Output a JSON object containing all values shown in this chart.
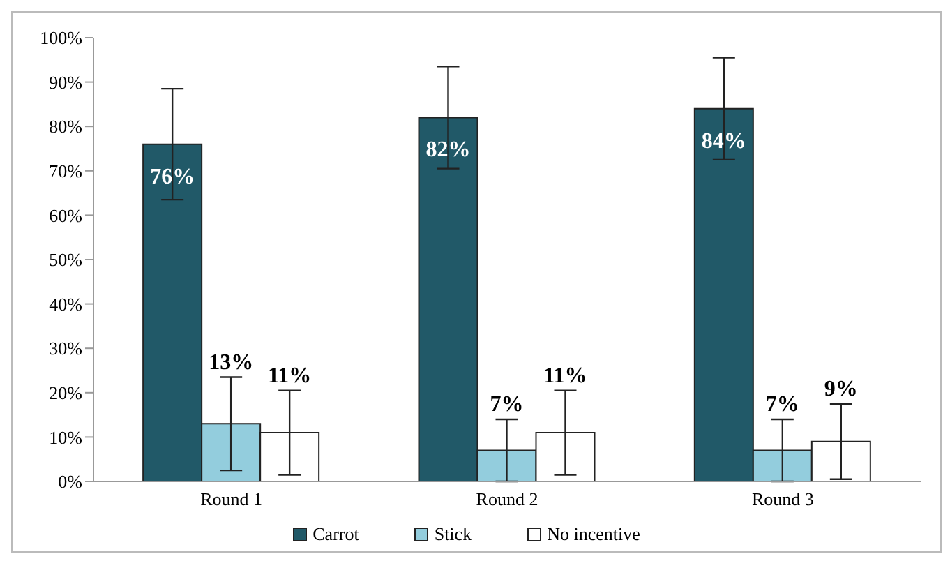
{
  "chart_data": {
    "type": "bar",
    "categories": [
      "Round 1",
      "Round 2",
      "Round 3"
    ],
    "series": [
      {
        "name": "Carrot",
        "color": "#215968",
        "values": [
          76,
          82,
          84
        ],
        "errors": [
          12.5,
          11.5,
          11.5
        ],
        "value_labels": [
          "76%",
          "82%",
          "84%"
        ]
      },
      {
        "name": "Stick",
        "color": "#93cddd",
        "values": [
          13,
          7,
          7
        ],
        "errors": [
          10.5,
          7,
          7
        ],
        "value_labels": [
          "13%",
          "7%",
          "7%"
        ]
      },
      {
        "name": "No incentive",
        "color": "#ffffff",
        "values": [
          11,
          11,
          9
        ],
        "errors": [
          9.5,
          9.5,
          8.5
        ],
        "value_labels": [
          "11%",
          "11%",
          "9%"
        ]
      }
    ],
    "ylim": [
      0,
      100
    ],
    "yticks": [
      {
        "value": 0,
        "label": "0%"
      },
      {
        "value": 10,
        "label": "10%"
      },
      {
        "value": 20,
        "label": "20%"
      },
      {
        "value": 30,
        "label": "30%"
      },
      {
        "value": 40,
        "label": "40%"
      },
      {
        "value": 50,
        "label": "50%"
      },
      {
        "value": 60,
        "label": "60%"
      },
      {
        "value": 70,
        "label": "70%"
      },
      {
        "value": 80,
        "label": "80%"
      },
      {
        "value": 90,
        "label": "90%"
      },
      {
        "value": 100,
        "label": "100%"
      }
    ],
    "grid": false,
    "legend": "bottom"
  }
}
